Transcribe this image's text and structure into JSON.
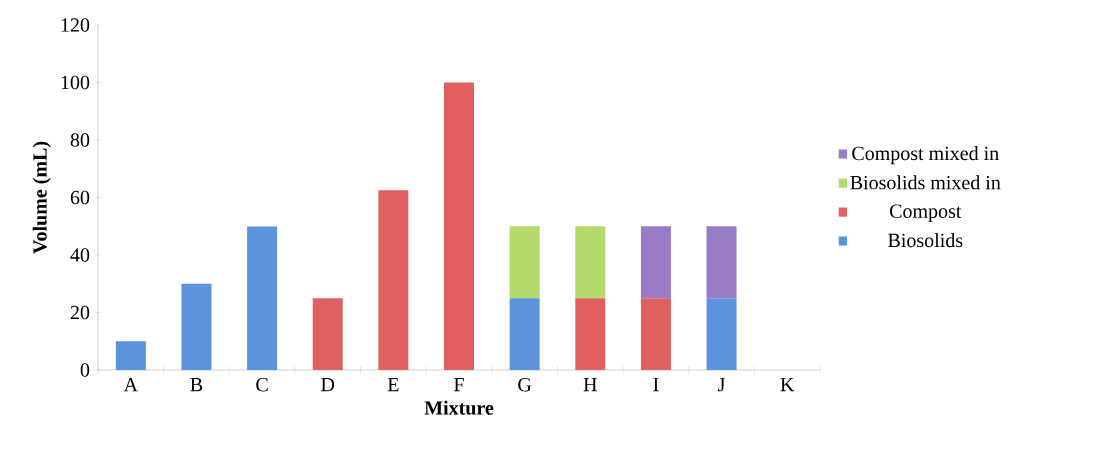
{
  "chart_data": {
    "type": "bar",
    "stacked": true,
    "xlabel": "Mixture",
    "ylabel": "Volume (mL)",
    "categories": [
      "A",
      "B",
      "C",
      "D",
      "E",
      "F",
      "G",
      "H",
      "I",
      "J",
      "K"
    ],
    "series": [
      {
        "name": "Biosolids",
        "color": "#5b93dd",
        "values": [
          10,
          30,
          50,
          0,
          0,
          0,
          25,
          0,
          0,
          25,
          0
        ]
      },
      {
        "name": "Compost",
        "color": "#e06060",
        "values": [
          0,
          0,
          0,
          25,
          62.5,
          100,
          0,
          25,
          25,
          0,
          0
        ]
      },
      {
        "name": "Biosolids mixed in",
        "color": "#b3da6a",
        "values": [
          0,
          0,
          0,
          0,
          0,
          0,
          25,
          25,
          0,
          0,
          0
        ]
      },
      {
        "name": "Compost mixed in",
        "color": "#9a7cc6",
        "values": [
          0,
          0,
          0,
          0,
          0,
          0,
          0,
          0,
          25,
          25,
          0
        ]
      }
    ],
    "ylim": [
      0,
      120
    ],
    "yticks": [
      0,
      20,
      40,
      60,
      80,
      100,
      120
    ],
    "legend": "right",
    "grid": false
  }
}
